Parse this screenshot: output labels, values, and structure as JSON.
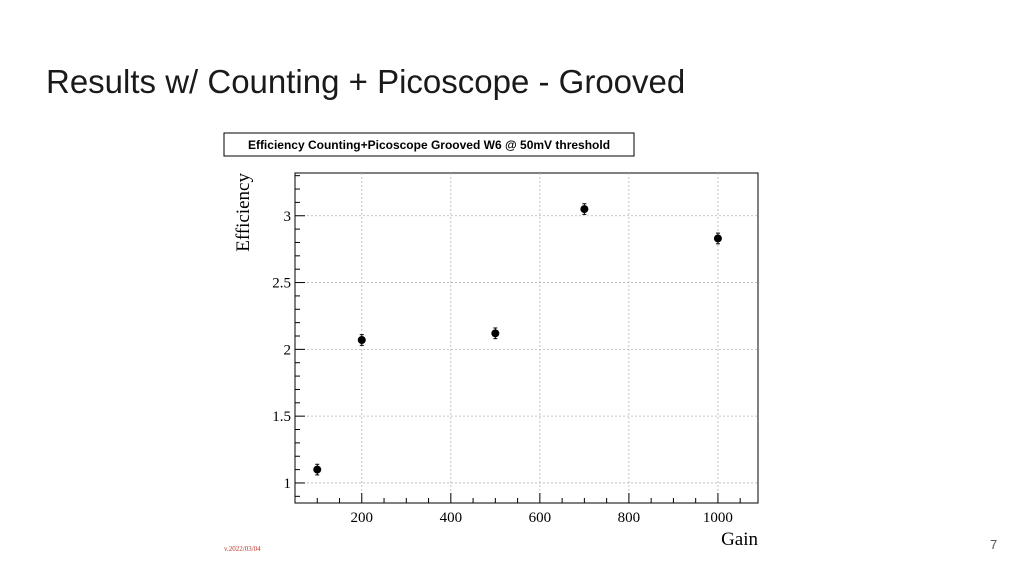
{
  "slide": {
    "title": "Results w/ Counting + Picoscope - Grooved",
    "version": "v.2022/03/04",
    "page_number": "7"
  },
  "chart_data": {
    "type": "scatter",
    "title": "Efficiency Counting+Picoscope Grooved W6 @ 50mV threshold",
    "xlabel": "Gain",
    "ylabel": "Efficiency",
    "xlim": [
      50,
      1090
    ],
    "ylim": [
      0.85,
      3.32
    ],
    "x_ticks": [
      200,
      400,
      600,
      800,
      1000
    ],
    "y_ticks": [
      1,
      1.5,
      2,
      2.5,
      3
    ],
    "x_tick_labels": [
      "200",
      "400",
      "600",
      "800",
      "1000"
    ],
    "y_tick_labels": [
      "1",
      "1.5",
      "2",
      "2.5",
      "3"
    ],
    "grid": true,
    "legend": "none",
    "series": [
      {
        "x": [
          100,
          200,
          500,
          700,
          1000
        ],
        "y": [
          1.1,
          2.07,
          2.12,
          3.05,
          2.83
        ],
        "yerr": [
          0.04,
          0.04,
          0.04,
          0.04,
          0.04
        ],
        "color": "#000000"
      }
    ]
  }
}
